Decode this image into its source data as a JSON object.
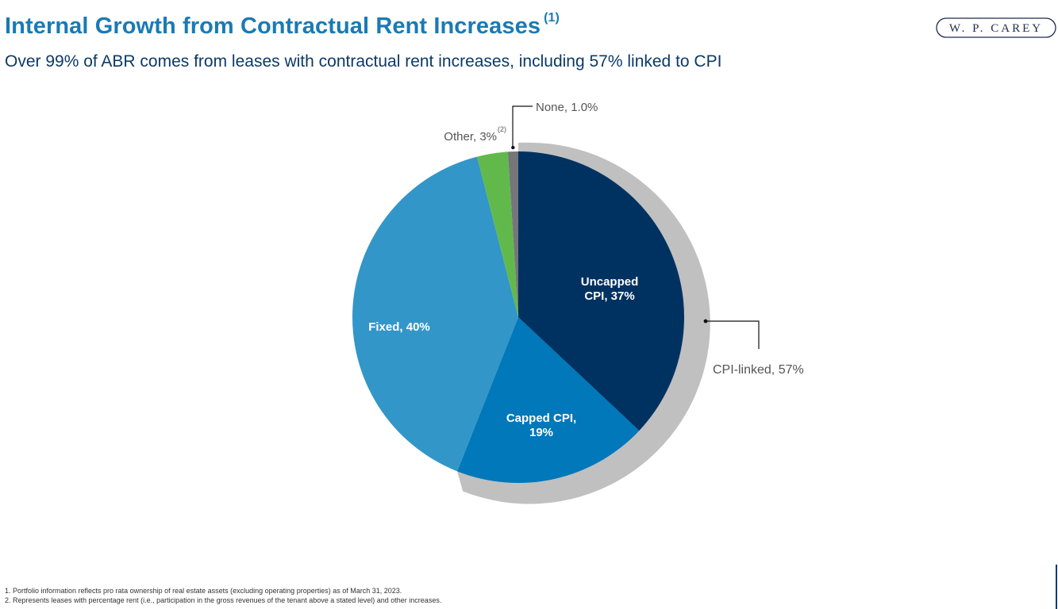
{
  "header": {
    "title": "Internal Growth from Contractual Rent Increases",
    "title_note": "(1)",
    "subtitle": "Over 99% of ABR comes from leases with contractual rent increases, including 57% linked to CPI",
    "logo_text": "W. P. CAREY"
  },
  "chart_data": {
    "type": "pie",
    "title": "",
    "slices": [
      {
        "name": "Uncapped CPI",
        "value": 37,
        "color": "#003261",
        "label_lines": [
          "Uncapped",
          "CPI, 37%"
        ],
        "label_color": "#ffffff"
      },
      {
        "name": "Capped CPI",
        "value": 19,
        "color": "#0078b9",
        "label_lines": [
          "Capped CPI,",
          "19%"
        ],
        "label_color": "#ffffff"
      },
      {
        "name": "Fixed",
        "value": 40,
        "color": "#3396c8",
        "label_lines": [
          "Fixed, 40%"
        ],
        "label_color": "#ffffff"
      },
      {
        "name": "Other",
        "value": 3,
        "color": "#62b94b",
        "label_lines": [
          "Other, 3%"
        ],
        "label_note": "(2)",
        "label_color": "#555555"
      },
      {
        "name": "None",
        "value": 1.0,
        "color": "#757679",
        "label_lines": [
          "None, 1.0%"
        ],
        "label_color": "#555555"
      }
    ],
    "group": {
      "name": "CPI-linked",
      "value": 57,
      "label": "CPI-linked, 57%",
      "color": "#c0c0c0"
    }
  },
  "footnotes": [
    "1.  Portfolio information reflects pro rata ownership of real estate assets (excluding operating properties) as of March 31, 2023.",
    "2. Represents leases with percentage rent (i.e., participation in the gross revenues of the tenant above a stated level) and other increases."
  ]
}
